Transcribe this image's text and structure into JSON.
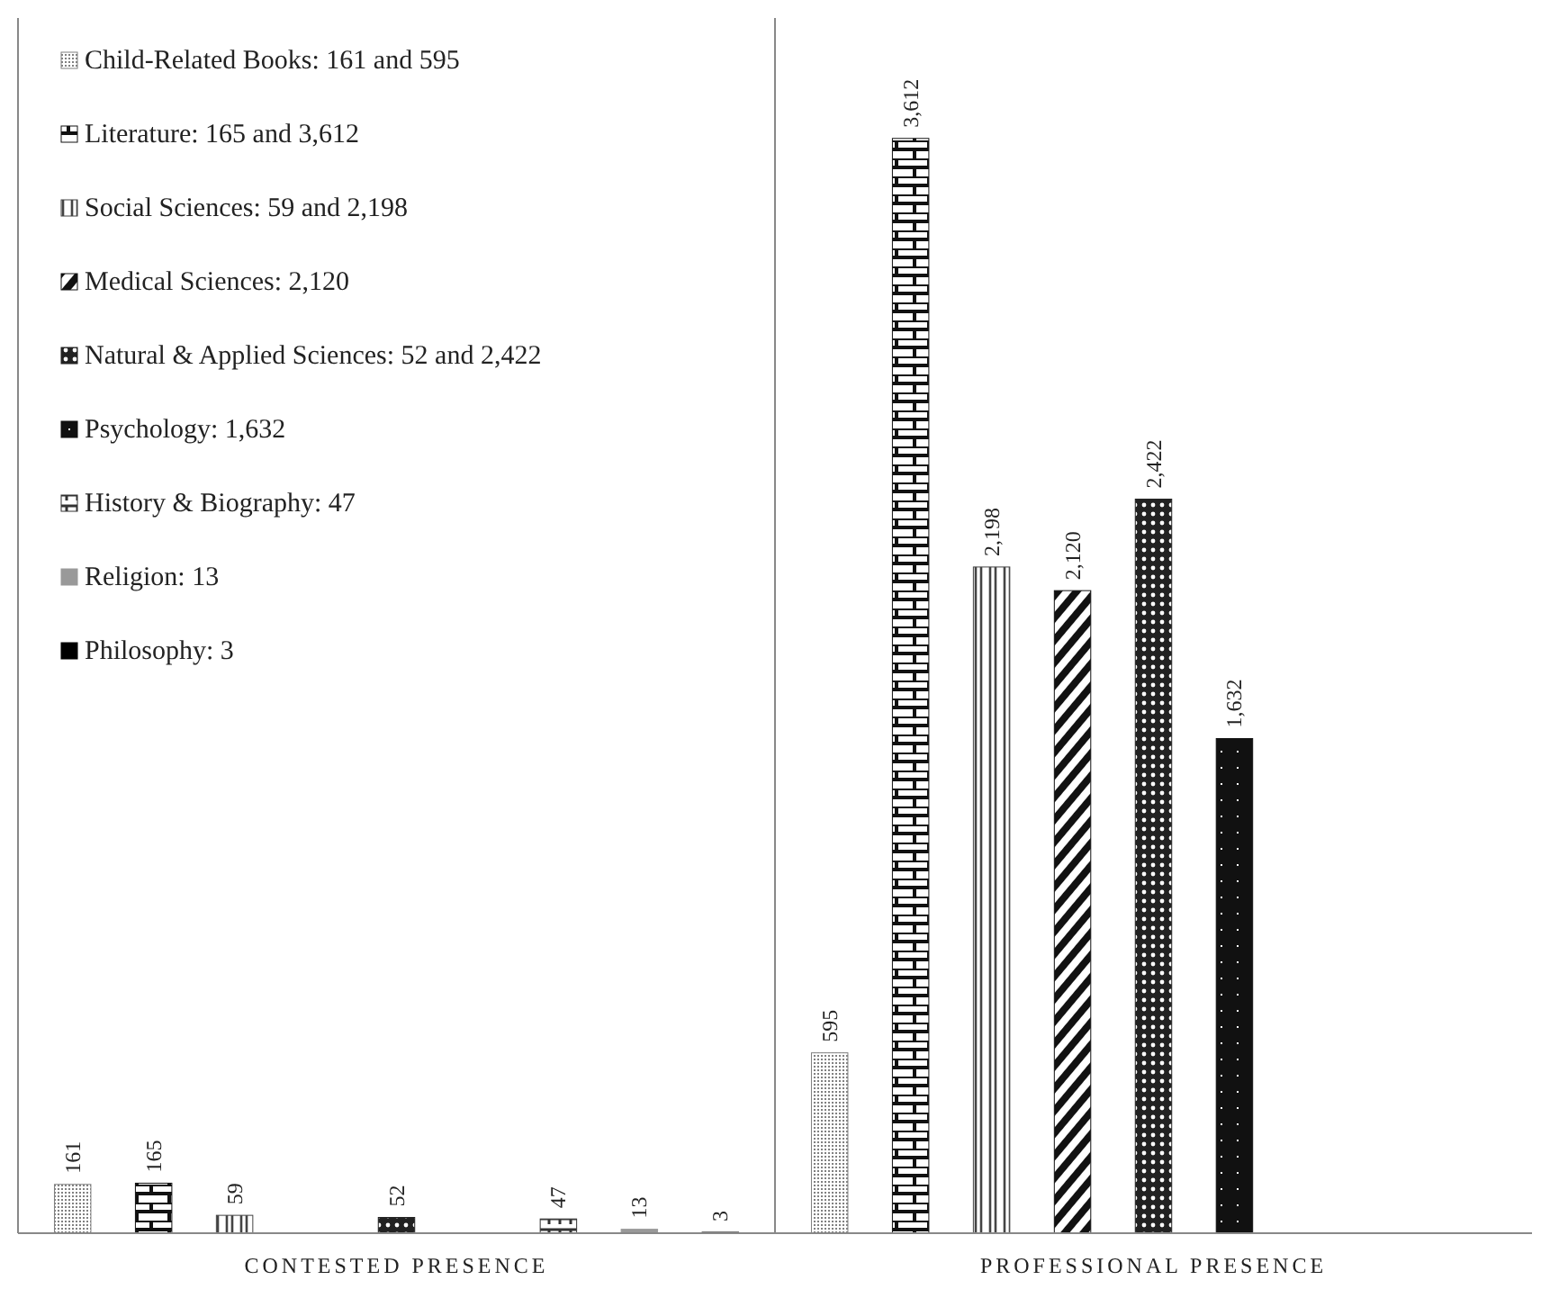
{
  "chart_data": {
    "type": "bar",
    "categories": [
      "CONTESTED PRESENCE",
      "PROFESSIONAL PRESENCE"
    ],
    "legend": "top left",
    "series": [
      {
        "name": "Child-Related Books: 161 and 595",
        "color": "#808080",
        "values": [
          161,
          595
        ],
        "value_labels": [
          "161",
          "595"
        ]
      },
      {
        "name": "Literature: 165 and 3,612",
        "color": "#111111",
        "values": [
          165,
          3612
        ],
        "value_labels": [
          "165",
          "3,612"
        ]
      },
      {
        "name": "Social Sciences: 59 and 2,198",
        "color": "#444444",
        "values": [
          59,
          2198
        ],
        "value_labels": [
          "59",
          "2,198"
        ]
      },
      {
        "name": "Medical Sciences: 2,120",
        "color": "#111111",
        "values": [
          null,
          2120
        ],
        "value_labels": [
          null,
          "2,120"
        ]
      },
      {
        "name": "Natural & Applied Sciences: 52 and 2,422",
        "color": "#222222",
        "values": [
          52,
          2422
        ],
        "value_labels": [
          "52",
          "2,422"
        ]
      },
      {
        "name": "Psychology: 1,632",
        "color": "#111111",
        "values": [
          null,
          1632
        ],
        "value_labels": [
          null,
          "1,632"
        ]
      },
      {
        "name": "History & Biography: 47",
        "color": "#333333",
        "values": [
          47,
          null
        ],
        "value_labels": [
          "47",
          null
        ]
      },
      {
        "name": "Religion: 13",
        "color": "#999999",
        "values": [
          13,
          null
        ],
        "value_labels": [
          "13",
          null
        ]
      },
      {
        "name": "Philosophy: 3",
        "color": "#000000",
        "values": [
          3,
          null
        ],
        "value_labels": [
          "3",
          null
        ]
      }
    ]
  }
}
